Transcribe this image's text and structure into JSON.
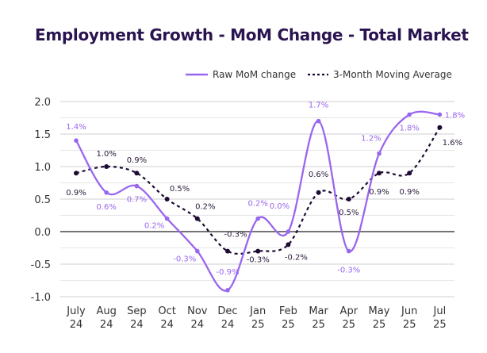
{
  "chart_data": {
    "type": "line",
    "title": "Employment Growth - MoM Change - Total Market",
    "categories": [
      "July\n24",
      "Aug\n24",
      "Sep\n24",
      "Oct\n24",
      "Nov\n24",
      "Dec\n24",
      "Jan\n25",
      "Feb\n25",
      "Mar\n25",
      "Apr\n25",
      "May\n25",
      "Jun\n25",
      "Jul\n25"
    ],
    "series": [
      {
        "name": "Raw MoM change",
        "color": "#9966ee",
        "style": "solid",
        "values": [
          1.4,
          0.6,
          0.7,
          0.2,
          -0.3,
          -0.9,
          0.2,
          0.0,
          1.7,
          -0.3,
          1.2,
          1.8,
          1.8
        ],
        "labels": [
          "1.4%",
          "0.6%",
          "0.7%",
          "0.2%",
          "-0.3%",
          "-0.9%",
          "0.2%",
          "0.0%",
          "1.7%",
          "-0.3%",
          "1.2%",
          "1.8%",
          "1.8%"
        ]
      },
      {
        "name": "3-Month Moving Average",
        "color": "#1e0b33",
        "style": "dotted",
        "values": [
          0.9,
          1.0,
          0.9,
          0.5,
          0.2,
          -0.3,
          -0.3,
          -0.2,
          0.6,
          0.5,
          0.9,
          0.9,
          1.6
        ],
        "labels": [
          "0.9%",
          "1.0%",
          "0.9%",
          "0.5%",
          "0.2%",
          "-0.3%",
          "-0.3%",
          "-0.2%",
          "0.6%",
          "0.5%",
          "0.9%",
          "0.9%",
          "1.6%"
        ]
      }
    ],
    "ylim": [
      -1.0,
      2.0
    ],
    "yticks": [
      "2.0",
      "1.5",
      "1.0",
      "0.5",
      "0.0",
      "-0.5",
      "-1.0"
    ],
    "grid": true,
    "legend": "top-right",
    "xlabel": "",
    "ylabel": ""
  }
}
